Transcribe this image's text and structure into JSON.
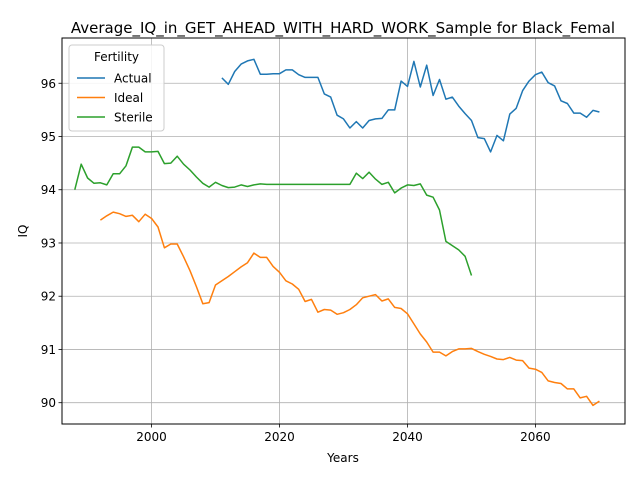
{
  "chart_data": {
    "type": "line",
    "title": "Average_IQ_in_GET_AHEAD_WITH_HARD_WORK_Sample for Black_Femal",
    "xlabel": "Years",
    "ylabel": "IQ",
    "xlim": [
      1986,
      2074
    ],
    "ylim": [
      89.6,
      96.85
    ],
    "x_ticks": [
      2000,
      2020,
      2040,
      2060
    ],
    "y_ticks": [
      90,
      91,
      92,
      93,
      94,
      95,
      96
    ],
    "grid": true,
    "legend": {
      "title": "Fertility",
      "placement": "top-left"
    },
    "series": [
      {
        "name": "Actual",
        "color": "#1f77b4",
        "x": [
          2011,
          2012,
          2013,
          2014,
          2015,
          2016,
          2017,
          2018,
          2019,
          2020,
          2021,
          2022,
          2023,
          2024,
          2025,
          2026,
          2027,
          2028,
          2029,
          2030,
          2031,
          2032,
          2033,
          2034,
          2035,
          2036,
          2037,
          2038,
          2039,
          2040,
          2041,
          2042,
          2043,
          2044,
          2045,
          2046,
          2047,
          2048,
          2049,
          2050,
          2051,
          2052,
          2053,
          2054,
          2055,
          2056,
          2057,
          2058,
          2059,
          2060,
          2061,
          2062,
          2063,
          2064,
          2065,
          2066,
          2067,
          2068,
          2069,
          2070
        ],
        "values": [
          96.1,
          95.98,
          96.22,
          96.36,
          96.42,
          96.45,
          96.17,
          96.17,
          96.18,
          96.18,
          96.25,
          96.25,
          96.16,
          96.11,
          96.11,
          96.11,
          95.8,
          95.74,
          95.4,
          95.33,
          95.16,
          95.28,
          95.16,
          95.3,
          95.33,
          95.34,
          95.5,
          95.5,
          96.04,
          95.94,
          96.41,
          95.93,
          96.34,
          95.77,
          96.07,
          95.7,
          95.74,
          95.57,
          95.43,
          95.3,
          94.98,
          94.96,
          94.71,
          95.02,
          94.92,
          95.42,
          95.53,
          95.86,
          96.04,
          96.16,
          96.21,
          96.01,
          95.95,
          95.67,
          95.62,
          95.44,
          95.44,
          95.36,
          95.49,
          95.46
        ]
      },
      {
        "name": "Ideal",
        "color": "#ff7f0e",
        "x": [
          1992,
          1993,
          1994,
          1995,
          1996,
          1997,
          1998,
          1999,
          2000,
          2001,
          2002,
          2003,
          2004,
          2005,
          2006,
          2007,
          2008,
          2009,
          2010,
          2011,
          2012,
          2013,
          2014,
          2015,
          2016,
          2017,
          2018,
          2019,
          2020,
          2021,
          2022,
          2023,
          2024,
          2025,
          2026,
          2027,
          2028,
          2029,
          2030,
          2031,
          2032,
          2033,
          2034,
          2035,
          2036,
          2037,
          2038,
          2039,
          2040,
          2041,
          2042,
          2043,
          2044,
          2045,
          2046,
          2047,
          2048,
          2049,
          2050,
          2051,
          2052,
          2053,
          2054,
          2055,
          2056,
          2057,
          2058,
          2059,
          2060,
          2061,
          2062,
          2063,
          2064,
          2065,
          2066,
          2067,
          2068,
          2069,
          2070
        ],
        "values": [
          93.43,
          93.51,
          93.58,
          93.55,
          93.5,
          93.52,
          93.4,
          93.54,
          93.46,
          93.3,
          92.91,
          92.98,
          92.98,
          92.74,
          92.48,
          92.18,
          91.86,
          91.88,
          92.21,
          92.29,
          92.37,
          92.46,
          92.55,
          92.63,
          92.81,
          92.73,
          92.73,
          92.56,
          92.45,
          92.29,
          92.23,
          92.13,
          91.9,
          91.94,
          91.7,
          91.75,
          91.74,
          91.66,
          91.69,
          91.75,
          91.84,
          91.97,
          92.0,
          92.03,
          91.91,
          91.95,
          91.79,
          91.77,
          91.67,
          91.48,
          91.29,
          91.14,
          90.95,
          90.95,
          90.88,
          90.96,
          91.01,
          91.01,
          91.02,
          90.96,
          90.91,
          90.87,
          90.82,
          90.81,
          90.85,
          90.8,
          90.79,
          90.65,
          90.63,
          90.57,
          90.41,
          90.38,
          90.36,
          90.26,
          90.26,
          90.09,
          90.12,
          89.95,
          90.03
        ]
      },
      {
        "name": "Sterile",
        "color": "#2ca02c",
        "x": [
          1988,
          1989,
          1990,
          1991,
          1992,
          1993,
          1994,
          1995,
          1996,
          1997,
          1998,
          1999,
          2000,
          2001,
          2002,
          2003,
          2004,
          2005,
          2006,
          2007,
          2008,
          2009,
          2010,
          2011,
          2012,
          2013,
          2014,
          2015,
          2016,
          2017,
          2018,
          2019,
          2020,
          2021,
          2022,
          2023,
          2024,
          2025,
          2026,
          2027,
          2028,
          2029,
          2030,
          2031,
          2032,
          2033,
          2034,
          2035,
          2036,
          2037,
          2038,
          2039,
          2040,
          2041,
          2042,
          2043,
          2044,
          2045,
          2046,
          2047,
          2048,
          2049,
          2050
        ],
        "values": [
          94.0,
          94.48,
          94.22,
          94.12,
          94.13,
          94.09,
          94.3,
          94.3,
          94.45,
          94.8,
          94.8,
          94.71,
          94.71,
          94.72,
          94.49,
          94.5,
          94.63,
          94.48,
          94.37,
          94.24,
          94.12,
          94.05,
          94.14,
          94.08,
          94.04,
          94.05,
          94.09,
          94.06,
          94.09,
          94.11,
          94.1,
          94.1,
          94.1,
          94.1,
          94.1,
          94.1,
          94.1,
          94.1,
          94.1,
          94.1,
          94.1,
          94.1,
          94.1,
          94.1,
          94.31,
          94.21,
          94.33,
          94.2,
          94.1,
          94.14,
          93.94,
          94.03,
          94.09,
          94.08,
          94.11,
          93.9,
          93.86,
          93.62,
          93.03,
          92.95,
          92.87,
          92.75,
          92.39
        ]
      }
    ]
  }
}
